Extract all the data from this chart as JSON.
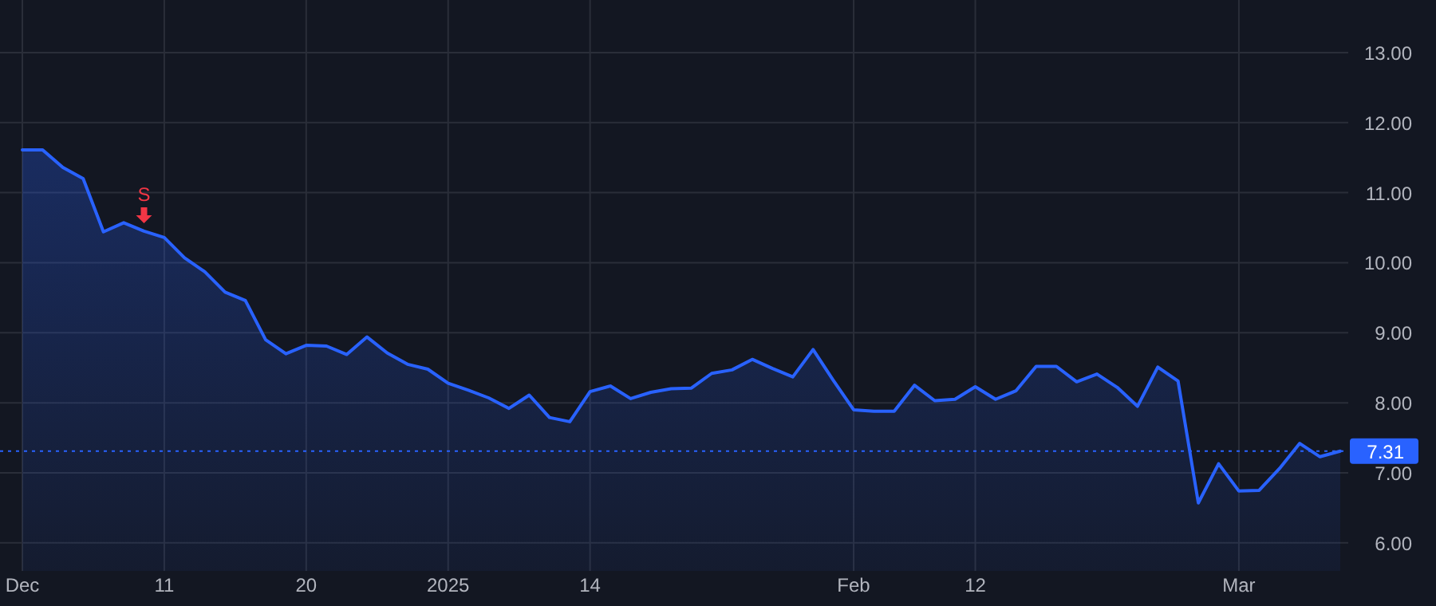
{
  "chart_data": {
    "type": "area",
    "categories": [
      "Dec",
      null,
      null,
      null,
      null,
      null,
      null,
      "11",
      null,
      null,
      null,
      null,
      null,
      null,
      "20",
      null,
      null,
      null,
      null,
      null,
      null,
      "2025",
      null,
      null,
      null,
      null,
      null,
      null,
      "14",
      null,
      null,
      null,
      null,
      null,
      null,
      null,
      null,
      null,
      null,
      null,
      null,
      "Feb",
      null,
      null,
      null,
      null,
      null,
      "12",
      null,
      null,
      null,
      null,
      null,
      null,
      null,
      null,
      null,
      null,
      null,
      null,
      "Mar",
      null,
      null,
      null,
      null,
      null
    ],
    "series": [
      {
        "color": "#2962ff",
        "values": [
          11.61,
          11.61,
          11.36,
          11.2,
          10.44,
          10.57,
          10.45,
          10.36,
          10.07,
          9.87,
          9.58,
          9.46,
          8.9,
          8.7,
          8.82,
          8.81,
          8.69,
          8.94,
          8.71,
          8.55,
          8.48,
          8.28,
          8.18,
          8.07,
          7.92,
          8.11,
          7.79,
          7.73,
          8.16,
          8.24,
          8.06,
          8.15,
          8.2,
          8.21,
          8.42,
          8.47,
          8.62,
          8.49,
          8.37,
          8.76,
          8.32,
          7.9,
          7.88,
          7.88,
          8.25,
          8.03,
          8.05,
          8.23,
          8.05,
          8.17,
          8.52,
          8.52,
          8.3,
          8.41,
          8.22,
          7.95,
          8.51,
          8.31,
          6.57,
          7.13,
          6.74,
          6.75,
          7.06,
          7.42,
          7.23,
          7.31
        ]
      }
    ],
    "ylim": [
      5.6,
      13.75
    ],
    "yticks": [
      {
        "value": 6,
        "label": "6.00"
      },
      {
        "value": 7,
        "label": "7.00"
      },
      {
        "value": 8,
        "label": "8.00"
      },
      {
        "value": 9,
        "label": "9.00"
      },
      {
        "value": 10,
        "label": "10.00"
      },
      {
        "value": 11,
        "label": "11.00"
      },
      {
        "value": 12,
        "label": "12.00"
      },
      {
        "value": 13,
        "label": "13.00"
      }
    ],
    "grid": true,
    "ref_lines": [
      {
        "axis": "y",
        "value": 7.31,
        "label": "7.31",
        "color": "#2962ff",
        "line_style": "dotted"
      }
    ],
    "annotations": [
      {
        "text": "S",
        "y": 10.45
      }
    ]
  }
}
